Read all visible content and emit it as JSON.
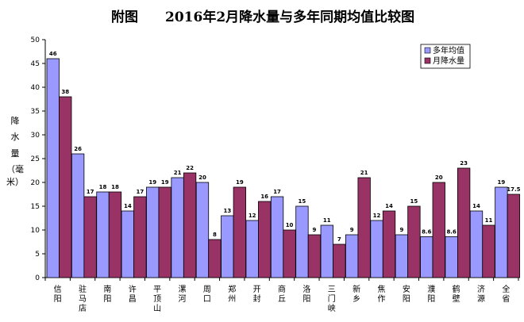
{
  "chart_data": {
    "type": "bar",
    "title_prefix": "附图",
    "title": "2016年2月降水量与多年同期均值比较图",
    "ylabel": "降水量（毫米）",
    "ylabel_chars": [
      "降",
      "水",
      "量",
      "（毫",
      "米）"
    ],
    "ylim": [
      0,
      50
    ],
    "yticks": [
      "0",
      "5",
      "10",
      "15",
      "20",
      "25",
      "30",
      "35",
      "40",
      "45",
      "50"
    ],
    "grid": false,
    "legend_position": "top-right",
    "categories": [
      "信阳",
      "驻马店",
      "南阳",
      "许昌",
      "平顶山",
      "漯河",
      "周口",
      "郑州",
      "开封",
      "商丘",
      "洛阳",
      "三门峡",
      "新乡",
      "焦作",
      "安阳",
      "濮阳",
      "鹤壁",
      "济源",
      "全省"
    ],
    "series": [
      {
        "name": "多年均值",
        "color": "#9999ff",
        "values": [
          46,
          26,
          18,
          14,
          19,
          21,
          20,
          13,
          12,
          17,
          15,
          11,
          9,
          12,
          9,
          8.6,
          8.6,
          14,
          19
        ],
        "labels": [
          "46",
          "26",
          "18",
          "14",
          "19",
          "21",
          "20",
          "13",
          "12",
          "17",
          "15",
          "11",
          "9",
          "12",
          "9",
          "8.6",
          "8.6",
          "14",
          "19"
        ]
      },
      {
        "name": "月降水量",
        "color": "#993366",
        "values": [
          38,
          17,
          18,
          17,
          19,
          22,
          8,
          19,
          16,
          10,
          9,
          7,
          21,
          14,
          15,
          20,
          23,
          11,
          17.5
        ],
        "labels": [
          "38",
          "17",
          "18",
          "17",
          "19",
          "22",
          "8",
          "19",
          "16",
          "10",
          "9",
          "7",
          "21",
          "14",
          "15",
          "20",
          "23",
          "11",
          "17.5"
        ]
      }
    ]
  }
}
